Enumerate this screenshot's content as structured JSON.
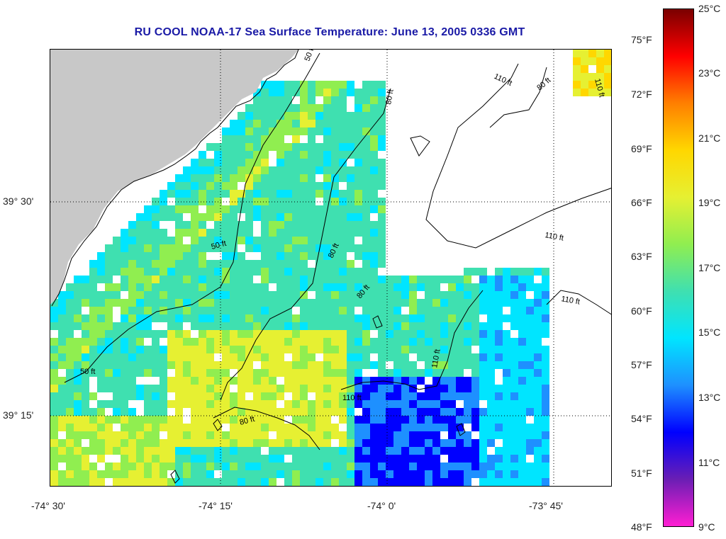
{
  "title": "RU COOL  NOAA-17  Sea Surface Temperature:  June 13, 2005 0336 GMT",
  "map": {
    "land_color": "#c8c8c8",
    "grid_style": "dotted",
    "lat_labels": [
      "39° 30'",
      "39° 15'"
    ],
    "lon_labels": [
      "-74° 30'",
      "-74° 15'",
      "-74° 0'",
      "-73° 45'"
    ],
    "isobaths": [
      "50 ft",
      "80 ft",
      "110 ft"
    ]
  },
  "colorbar": {
    "fahrenheit": [
      "75°F",
      "72°F",
      "69°F",
      "66°F",
      "63°F",
      "60°F",
      "57°F",
      "54°F",
      "51°F",
      "48°F"
    ],
    "celsius": [
      "25°C",
      "23°C",
      "21°C",
      "19°C",
      "17°C",
      "15°C",
      "13°C",
      "11°C",
      "9°C"
    ],
    "range_c": [
      9,
      25
    ],
    "colors_top_to_bottom": [
      "#7a0000",
      "#ff0000",
      "#ff7f00",
      "#ffd700",
      "#e6f032",
      "#90ee50",
      "#3fe0b0",
      "#00e5ff",
      "#1e90ff",
      "#0000ff",
      "#6a1eb4",
      "#ff1ed2"
    ]
  }
}
